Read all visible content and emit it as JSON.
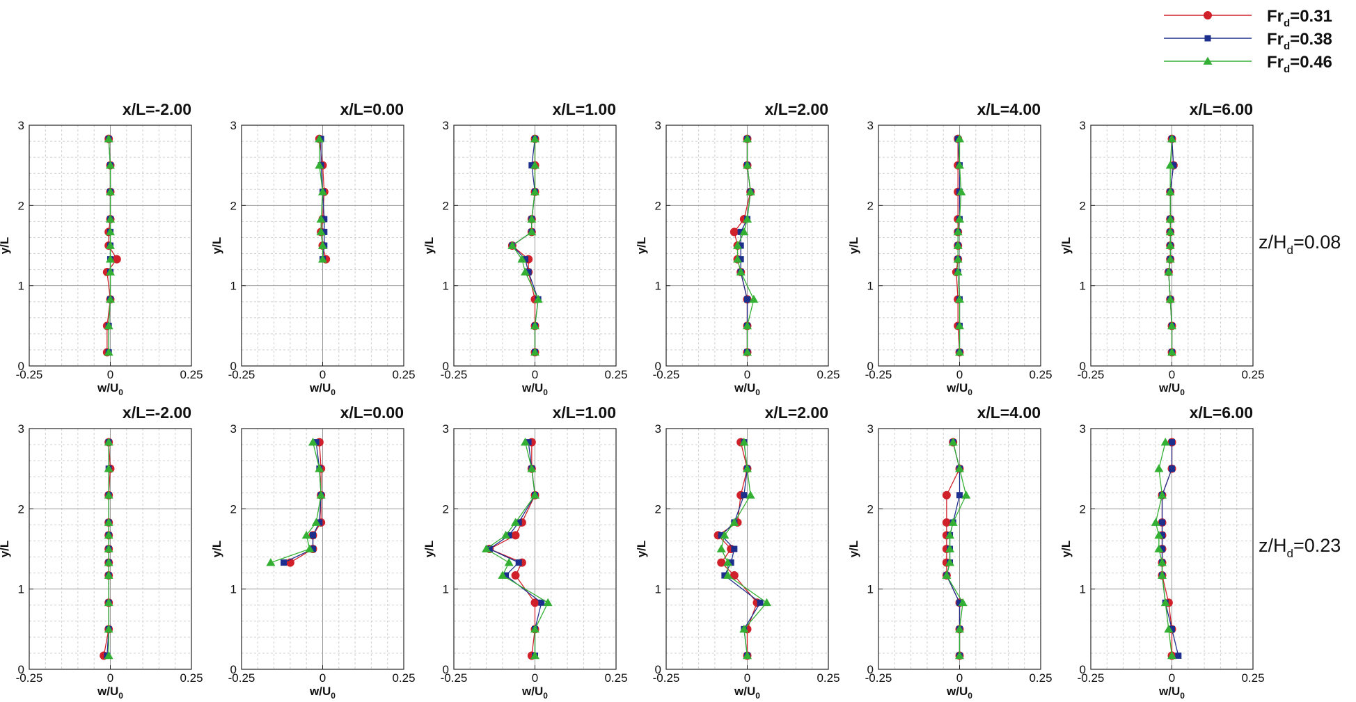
{
  "legend": [
    {
      "main": "Fr",
      "sub": "d",
      "value": "=0.31",
      "color": "#d0202a",
      "marker": "circle"
    },
    {
      "main": "Fr",
      "sub": "d",
      "value": "=0.38",
      "color": "#1d2f8c",
      "marker": "square"
    },
    {
      "main": "Fr",
      "sub": "d",
      "value": "=0.46",
      "color": "#33b033",
      "marker": "triangle"
    }
  ],
  "rows": [
    {
      "main": "z/H",
      "sub": "d",
      "value": "=0.08"
    },
    {
      "main": "z/H",
      "sub": "d",
      "value": "=0.23"
    }
  ],
  "axes": {
    "xlabel": {
      "main": "w/U",
      "sub": "0"
    },
    "ylabel": "y/L",
    "xlim": [
      -0.25,
      0.25
    ],
    "ylim": [
      0,
      3
    ],
    "xticks": [
      "-0.25",
      "0",
      "0.25"
    ],
    "yticks": [
      "0",
      "1",
      "2",
      "3"
    ]
  },
  "chart_data": {
    "type": "line",
    "y": [
      0.17,
      0.5,
      0.83,
      1.17,
      1.33,
      1.5,
      1.67,
      1.83,
      2.17,
      2.5,
      2.83
    ],
    "panels": [
      {
        "title": "x/L=-2.00",
        "row": 0,
        "series": [
          {
            "name": "Fr_d=0.31",
            "x": [
              -0.01,
              -0.01,
              0.0,
              -0.01,
              0.02,
              -0.005,
              -0.005,
              0.0,
              0.0,
              0.0,
              -0.005
            ]
          },
          {
            "name": "Fr_d=0.38",
            "x": [
              -0.005,
              -0.005,
              0.0,
              0.0,
              0.0,
              0.0,
              0.0,
              0.0,
              0.0,
              0.0,
              -0.005
            ]
          },
          {
            "name": "Fr_d=0.46",
            "x": [
              -0.005,
              -0.005,
              0.0,
              0.0,
              0.0,
              0.0,
              0.0,
              0.0,
              0.0,
              0.0,
              -0.005
            ]
          }
        ]
      },
      {
        "title": "x/L=0.00",
        "row": 0,
        "series": [
          {
            "name": "Fr_d=0.31",
            "x": [
              null,
              null,
              null,
              null,
              0.01,
              0.0,
              -0.005,
              0.0,
              0.005,
              0.0,
              -0.01
            ]
          },
          {
            "name": "Fr_d=0.38",
            "x": [
              null,
              null,
              null,
              null,
              0.0,
              0.005,
              0.005,
              0.005,
              0.0,
              -0.005,
              -0.005
            ]
          },
          {
            "name": "Fr_d=0.46",
            "x": [
              null,
              null,
              null,
              null,
              0.0,
              0.0,
              -0.005,
              -0.005,
              0.0,
              -0.01,
              -0.01
            ]
          }
        ]
      },
      {
        "title": "x/L=1.00",
        "row": 0,
        "series": [
          {
            "name": "Fr_d=0.31",
            "x": [
              0.0,
              0.0,
              0.0,
              -0.02,
              -0.02,
              -0.07,
              -0.01,
              -0.01,
              0.0,
              0.0,
              0.0
            ]
          },
          {
            "name": "Fr_d=0.38",
            "x": [
              0.0,
              0.0,
              0.01,
              -0.02,
              -0.03,
              -0.07,
              -0.01,
              -0.01,
              0.0,
              -0.01,
              0.0
            ]
          },
          {
            "name": "Fr_d=0.46",
            "x": [
              0.0,
              0.0,
              0.01,
              -0.03,
              -0.04,
              -0.07,
              -0.01,
              -0.01,
              0.0,
              0.0,
              0.0
            ]
          }
        ]
      },
      {
        "title": "x/L=2.00",
        "row": 0,
        "series": [
          {
            "name": "Fr_d=0.31",
            "x": [
              0.0,
              0.0,
              0.0,
              -0.02,
              -0.03,
              -0.03,
              -0.04,
              -0.01,
              0.01,
              0.0,
              0.0
            ]
          },
          {
            "name": "Fr_d=0.38",
            "x": [
              0.0,
              0.0,
              0.0,
              -0.02,
              -0.02,
              -0.02,
              -0.02,
              0.0,
              0.01,
              0.0,
              0.0
            ]
          },
          {
            "name": "Fr_d=0.46",
            "x": [
              0.0,
              0.0,
              0.02,
              -0.02,
              -0.03,
              -0.03,
              -0.01,
              0.0,
              0.01,
              0.0,
              0.0
            ]
          }
        ]
      },
      {
        "title": "x/L=4.00",
        "row": 0,
        "series": [
          {
            "name": "Fr_d=0.31",
            "x": [
              0.0,
              -0.005,
              -0.005,
              -0.01,
              -0.005,
              -0.005,
              -0.005,
              -0.005,
              -0.005,
              -0.005,
              -0.005
            ]
          },
          {
            "name": "Fr_d=0.38",
            "x": [
              0.0,
              0.0,
              0.0,
              -0.005,
              -0.005,
              -0.005,
              -0.005,
              0.0,
              0.0,
              0.0,
              -0.005
            ]
          },
          {
            "name": "Fr_d=0.46",
            "x": [
              0.0,
              0.0,
              0.0,
              -0.005,
              -0.005,
              -0.005,
              -0.005,
              0.0,
              0.005,
              0.0,
              0.0
            ]
          }
        ]
      },
      {
        "title": "x/L=6.00",
        "row": 0,
        "series": [
          {
            "name": "Fr_d=0.31",
            "x": [
              0.0,
              0.0,
              -0.005,
              -0.01,
              -0.005,
              -0.005,
              -0.005,
              -0.005,
              -0.005,
              0.005,
              0.0
            ]
          },
          {
            "name": "Fr_d=0.38",
            "x": [
              0.0,
              0.0,
              -0.005,
              -0.01,
              -0.005,
              -0.005,
              -0.005,
              -0.005,
              -0.005,
              0.005,
              0.0
            ]
          },
          {
            "name": "Fr_d=0.46",
            "x": [
              0.0,
              0.0,
              -0.005,
              -0.01,
              -0.005,
              -0.005,
              -0.005,
              -0.005,
              -0.005,
              -0.005,
              0.0
            ]
          }
        ]
      },
      {
        "title": "x/L=-2.00",
        "row": 1,
        "series": [
          {
            "name": "Fr_d=0.31",
            "x": [
              -0.02,
              -0.005,
              -0.005,
              -0.005,
              -0.005,
              -0.005,
              -0.005,
              -0.005,
              -0.005,
              0.0,
              -0.005
            ]
          },
          {
            "name": "Fr_d=0.38",
            "x": [
              -0.01,
              -0.005,
              -0.005,
              -0.005,
              -0.005,
              -0.005,
              -0.005,
              -0.005,
              -0.005,
              -0.005,
              -0.005
            ]
          },
          {
            "name": "Fr_d=0.46",
            "x": [
              -0.005,
              -0.005,
              -0.005,
              -0.005,
              -0.005,
              -0.005,
              -0.005,
              -0.005,
              -0.005,
              -0.005,
              -0.005
            ]
          }
        ]
      },
      {
        "title": "x/L=0.00",
        "row": 1,
        "series": [
          {
            "name": "Fr_d=0.31",
            "x": [
              null,
              null,
              null,
              null,
              -0.1,
              -0.03,
              -0.03,
              -0.005,
              -0.005,
              -0.005,
              -0.01
            ]
          },
          {
            "name": "Fr_d=0.38",
            "x": [
              null,
              null,
              null,
              null,
              -0.12,
              -0.03,
              -0.03,
              -0.01,
              -0.005,
              -0.01,
              -0.02
            ]
          },
          {
            "name": "Fr_d=0.46",
            "x": [
              null,
              null,
              null,
              null,
              -0.16,
              -0.04,
              -0.05,
              -0.02,
              -0.005,
              -0.01,
              -0.03
            ]
          }
        ]
      },
      {
        "title": "x/L=1.00",
        "row": 1,
        "series": [
          {
            "name": "Fr_d=0.31",
            "x": [
              -0.01,
              0.0,
              0.0,
              -0.06,
              -0.04,
              -0.14,
              -0.06,
              -0.04,
              0.0,
              -0.01,
              -0.01
            ]
          },
          {
            "name": "Fr_d=0.38",
            "x": [
              0.0,
              0.0,
              0.02,
              -0.09,
              -0.05,
              -0.14,
              -0.08,
              -0.05,
              0.0,
              -0.01,
              -0.02
            ]
          },
          {
            "name": "Fr_d=0.46",
            "x": [
              0.0,
              0.0,
              0.04,
              -0.1,
              -0.08,
              -0.15,
              -0.09,
              -0.06,
              0.0,
              -0.01,
              -0.03
            ]
          }
        ]
      },
      {
        "title": "x/L=2.00",
        "row": 1,
        "series": [
          {
            "name": "Fr_d=0.31",
            "x": [
              0.0,
              0.0,
              0.03,
              -0.04,
              -0.08,
              -0.05,
              -0.09,
              -0.03,
              -0.02,
              0.0,
              -0.02
            ]
          },
          {
            "name": "Fr_d=0.38",
            "x": [
              0.0,
              -0.01,
              0.04,
              -0.07,
              -0.05,
              -0.04,
              -0.08,
              -0.04,
              -0.01,
              0.0,
              -0.01
            ]
          },
          {
            "name": "Fr_d=0.46",
            "x": [
              0.0,
              -0.01,
              0.06,
              -0.06,
              -0.06,
              -0.08,
              -0.07,
              -0.04,
              0.01,
              0.0,
              -0.01
            ]
          }
        ]
      },
      {
        "title": "x/L=4.00",
        "row": 1,
        "series": [
          {
            "name": "Fr_d=0.31",
            "x": [
              0.0,
              0.0,
              0.0,
              -0.04,
              -0.04,
              -0.04,
              -0.04,
              -0.04,
              -0.04,
              0.0,
              -0.02
            ]
          },
          {
            "name": "Fr_d=0.38",
            "x": [
              0.0,
              0.0,
              0.0,
              -0.04,
              -0.03,
              -0.03,
              -0.03,
              -0.02,
              0.0,
              0.0,
              -0.02
            ]
          },
          {
            "name": "Fr_d=0.46",
            "x": [
              0.0,
              0.0,
              0.01,
              -0.04,
              -0.03,
              -0.03,
              -0.03,
              -0.02,
              0.02,
              0.0,
              -0.02
            ]
          }
        ]
      },
      {
        "title": "x/L=6.00",
        "row": 1,
        "series": [
          {
            "name": "Fr_d=0.31",
            "x": [
              0.0,
              0.0,
              -0.01,
              -0.03,
              -0.03,
              -0.03,
              -0.03,
              -0.03,
              -0.03,
              0.0,
              0.0
            ]
          },
          {
            "name": "Fr_d=0.38",
            "x": [
              0.02,
              0.0,
              -0.02,
              -0.03,
              -0.03,
              -0.03,
              -0.03,
              -0.03,
              -0.03,
              0.0,
              0.0
            ]
          },
          {
            "name": "Fr_d=0.46",
            "x": [
              0.0,
              -0.01,
              -0.02,
              -0.03,
              -0.03,
              -0.04,
              -0.04,
              -0.05,
              -0.03,
              -0.04,
              -0.02
            ]
          }
        ]
      }
    ]
  }
}
